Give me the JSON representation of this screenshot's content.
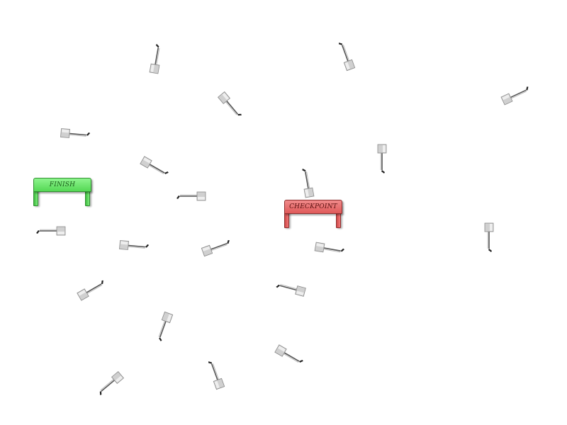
{
  "gates": {
    "finish_label": "FINISH",
    "checkpoint_label": "CHECKPOINT"
  },
  "colors": {
    "finish": "#5cdc5c",
    "checkpoint": "#e46464",
    "flag_block": "#d0d0d0",
    "flag_pole": "#555555"
  }
}
